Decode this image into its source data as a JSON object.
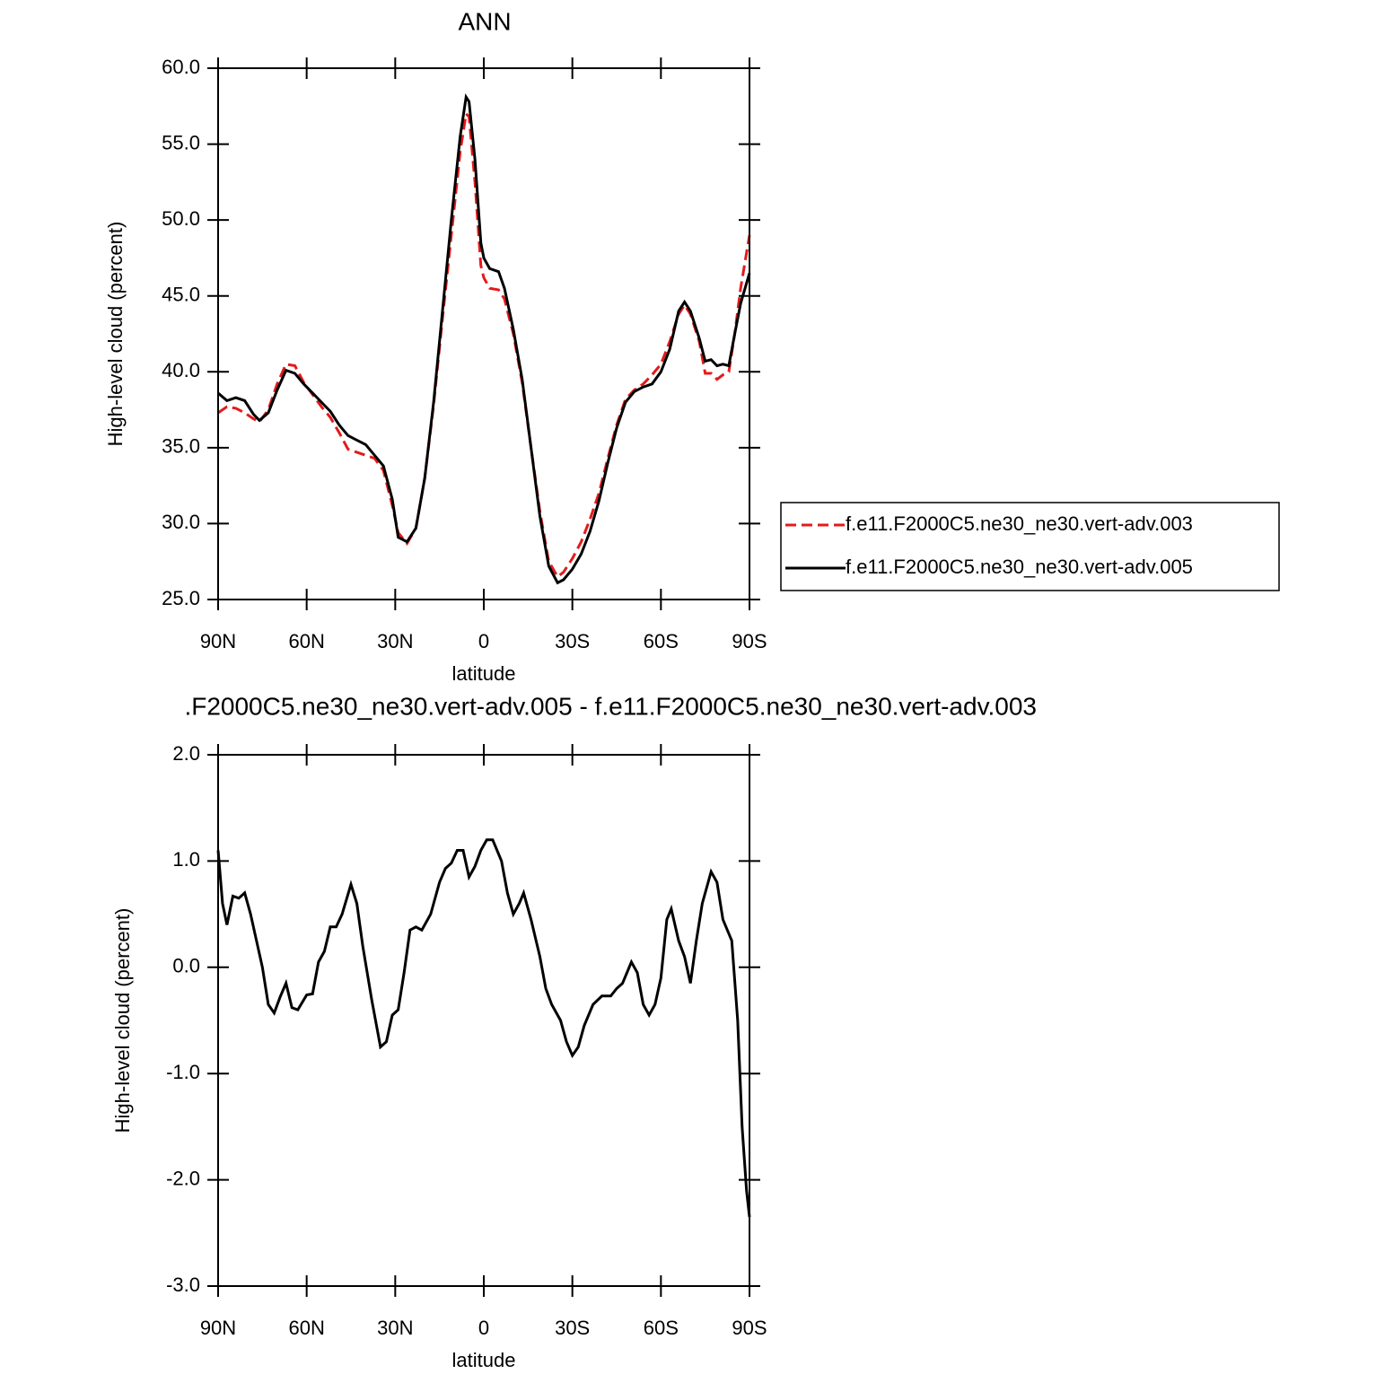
{
  "chart_data": [
    {
      "type": "line",
      "title": "ANN",
      "xlabel": "latitude",
      "ylabel": "High-level cloud (percent)",
      "x": [
        90,
        87,
        84,
        81,
        78,
        76,
        73,
        70,
        67,
        64,
        61,
        58,
        55,
        52,
        49,
        46,
        43,
        40,
        37,
        34,
        31,
        29,
        26,
        23,
        20,
        17,
        14,
        11,
        8,
        6,
        5,
        3,
        1,
        0,
        -2,
        -5,
        -7,
        -10,
        -13,
        -16,
        -19,
        -22,
        -25,
        -27,
        -30,
        -33,
        -36,
        -39,
        -42,
        -45,
        -48,
        -51,
        -54,
        -57,
        -60,
        -63,
        -66,
        -68,
        -70,
        -73,
        -75,
        -77,
        -79,
        -81,
        -83,
        -85,
        -87,
        -90
      ],
      "series": [
        {
          "name": "f.e11.F2000C5.ne30_ne30.vert-adv.003",
          "color": "#e41a1c",
          "style": "dashed",
          "values": [
            37.3,
            37.7,
            37.6,
            37.3,
            36.9,
            36.7,
            37.5,
            39.2,
            40.5,
            40.4,
            39.3,
            38.5,
            37.7,
            37.0,
            36.0,
            34.9,
            34.7,
            34.5,
            34.3,
            33.5,
            31.2,
            29.4,
            28.7,
            29.7,
            33.0,
            37.8,
            43.5,
            49.0,
            54.5,
            57.0,
            56.8,
            52.5,
            47.0,
            46.2,
            45.5,
            45.4,
            44.8,
            42.5,
            39.3,
            35.0,
            30.8,
            27.5,
            26.5,
            26.8,
            27.7,
            28.8,
            30.3,
            32.0,
            34.3,
            36.5,
            38.2,
            38.8,
            39.2,
            39.8,
            40.5,
            42.0,
            43.8,
            44.4,
            43.8,
            42.0,
            39.9,
            39.9,
            39.5,
            39.8,
            40.0,
            42.5,
            45.5,
            49.0
          ]
        },
        {
          "name": "f.e11.F2000C5.ne30_ne30.vert-adv.005",
          "color": "#000000",
          "style": "solid",
          "values": [
            38.6,
            38.1,
            38.3,
            38.1,
            37.2,
            36.8,
            37.3,
            38.8,
            40.1,
            39.9,
            39.2,
            38.6,
            38.0,
            37.4,
            36.5,
            35.8,
            35.5,
            35.2,
            34.5,
            33.8,
            31.6,
            29.1,
            28.8,
            29.7,
            33.0,
            38.0,
            44.0,
            50.0,
            55.5,
            58.1,
            57.8,
            54.0,
            48.5,
            47.5,
            46.8,
            46.6,
            45.5,
            42.8,
            39.5,
            35.0,
            30.5,
            27.2,
            26.1,
            26.3,
            27.0,
            28.0,
            29.5,
            31.5,
            34.0,
            36.3,
            38.0,
            38.7,
            39.0,
            39.2,
            40.0,
            41.5,
            44.0,
            44.6,
            44.0,
            42.2,
            40.7,
            40.8,
            40.4,
            40.5,
            40.4,
            42.5,
            44.5,
            46.5
          ]
        }
      ],
      "xlim": [
        90,
        -90
      ],
      "xticks": [
        {
          "value": 90,
          "label": "90N"
        },
        {
          "value": 60,
          "label": "60N"
        },
        {
          "value": 30,
          "label": "30N"
        },
        0,
        {
          "value": -30,
          "label": "30S"
        },
        {
          "value": -60,
          "label": "60S"
        },
        {
          "value": -90,
          "label": "90S"
        }
      ],
      "ylim": [
        25,
        60
      ],
      "yticks": [
        {
          "value": 25,
          "label": "25.0"
        },
        {
          "value": 30,
          "label": "30.0"
        },
        {
          "value": 35,
          "label": "35.0"
        },
        {
          "value": 40,
          "label": "40.0"
        },
        {
          "value": 45,
          "label": "45.0"
        },
        {
          "value": 50,
          "label": "50.0"
        },
        {
          "value": 55,
          "label": "55.0"
        },
        {
          "value": 60,
          "label": "60.0"
        }
      ],
      "legend": "right"
    },
    {
      "type": "line",
      "title": ".F2000C5.ne30_ne30.vert-adv.005 - f.e11.F2000C5.ne30_ne30.vert-adv.003",
      "xlabel": "latitude",
      "ylabel": "High-level cloud (percent)",
      "x": [
        90,
        88.5,
        87,
        85,
        83,
        81,
        79,
        77,
        75,
        73,
        71,
        69,
        67,
        65,
        63,
        60,
        58,
        56,
        54,
        52,
        50,
        48,
        45,
        43,
        41,
        38,
        35,
        33,
        31,
        29,
        27,
        25,
        23,
        21,
        18,
        15,
        13,
        11,
        9,
        7,
        5,
        3,
        1,
        -1,
        -3,
        -6,
        -8,
        -10,
        -12,
        -13.5,
        -16,
        -19,
        -21,
        -23,
        -26,
        -28,
        -30,
        -32,
        -34,
        -37,
        -40,
        -43,
        -45,
        -47,
        -50,
        -52,
        -54,
        -56,
        -58,
        -60,
        -62,
        -63.5,
        -66,
        -68,
        -70,
        -72,
        -74,
        -77,
        -79,
        -81,
        -84,
        -86,
        -87.5,
        -89,
        -90
      ],
      "series": [
        {
          "color": "#000000",
          "style": "solid",
          "values": [
            1.1,
            0.6,
            0.4,
            0.67,
            0.65,
            0.7,
            0.5,
            0.25,
            0.0,
            -0.35,
            -0.43,
            -0.28,
            -0.15,
            -0.38,
            -0.4,
            -0.26,
            -0.25,
            0.05,
            0.15,
            0.38,
            0.38,
            0.5,
            0.78,
            0.6,
            0.2,
            -0.3,
            -0.75,
            -0.7,
            -0.45,
            -0.4,
            -0.05,
            0.35,
            0.38,
            0.35,
            0.5,
            0.8,
            0.93,
            0.98,
            1.1,
            1.1,
            0.85,
            0.95,
            1.1,
            1.2,
            1.2,
            1.0,
            0.7,
            0.5,
            0.6,
            0.7,
            0.45,
            0.1,
            -0.2,
            -0.35,
            -0.5,
            -0.7,
            -0.83,
            -0.75,
            -0.55,
            -0.35,
            -0.27,
            -0.27,
            -0.2,
            -0.15,
            0.05,
            -0.05,
            -0.35,
            -0.45,
            -0.35,
            -0.1,
            0.45,
            0.55,
            0.25,
            0.1,
            -0.15,
            0.25,
            0.6,
            0.9,
            0.8,
            0.45,
            0.25,
            -0.5,
            -1.5,
            -2.1,
            -2.35
          ]
        }
      ],
      "xlim": [
        90,
        -90
      ],
      "xticks": [
        {
          "value": 90,
          "label": "90N"
        },
        {
          "value": 60,
          "label": "60N"
        },
        {
          "value": 30,
          "label": "30N"
        },
        0,
        {
          "value": -30,
          "label": "30S"
        },
        {
          "value": -60,
          "label": "60S"
        },
        {
          "value": -90,
          "label": "90S"
        }
      ],
      "ylim": [
        -3,
        2
      ],
      "yticks": [
        {
          "value": -3,
          "label": "-3.0"
        },
        {
          "value": -2,
          "label": "-2.0"
        },
        {
          "value": -1,
          "label": "-1.0"
        },
        {
          "value": 0,
          "label": "0.0"
        },
        {
          "value": 1,
          "label": "1.0"
        },
        {
          "value": 2,
          "label": "2.0"
        }
      ]
    }
  ]
}
